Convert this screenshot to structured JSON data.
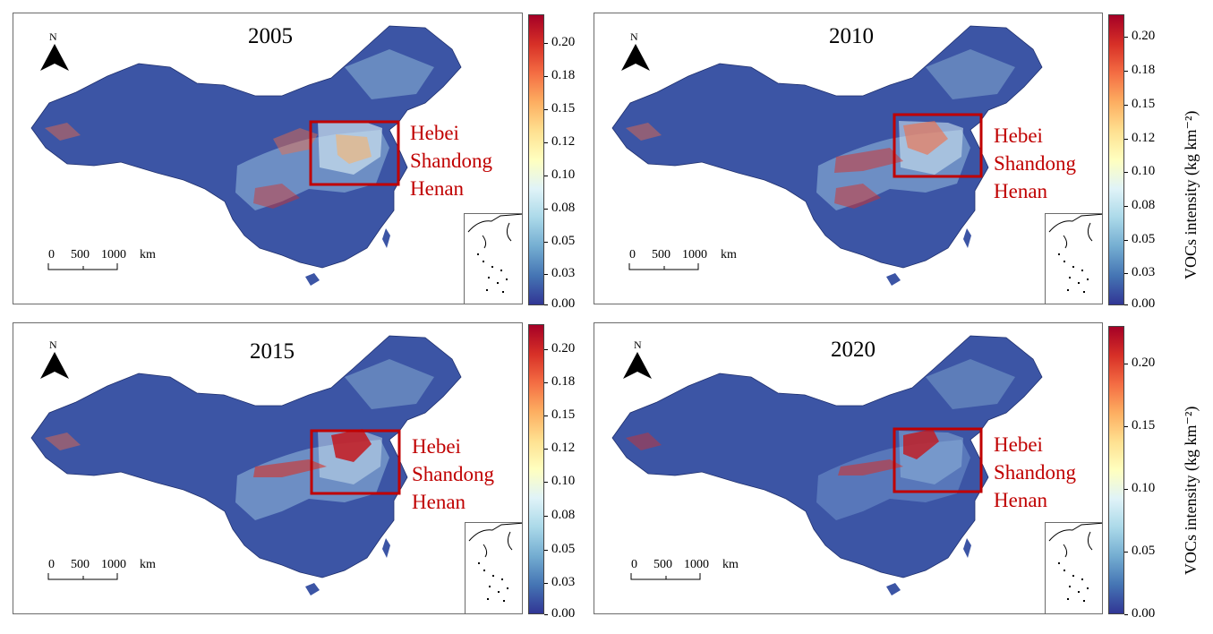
{
  "panels": [
    {
      "year": "2005",
      "regions": [
        "Hebei",
        "Shandong",
        "Henan"
      ],
      "colorbar_ticks": [
        "0.20",
        "0.18",
        "0.15",
        "0.12",
        "0.10",
        "0.08",
        "0.05",
        "0.03",
        "0.00"
      ]
    },
    {
      "year": "2010",
      "regions": [
        "Hebei",
        "Shandong",
        "Henan"
      ],
      "colorbar_ticks": [
        "0.20",
        "0.18",
        "0.15",
        "0.12",
        "0.10",
        "0.08",
        "0.05",
        "0.03",
        "0.00"
      ]
    },
    {
      "year": "2015",
      "regions": [
        "Hebei",
        "Shandong",
        "Henan"
      ],
      "colorbar_ticks": [
        "0.20",
        "0.18",
        "0.15",
        "0.12",
        "0.10",
        "0.08",
        "0.05",
        "0.03",
        "0.00"
      ]
    },
    {
      "year": "2020",
      "regions": [
        "Hebei",
        "Shandong",
        "Henan"
      ],
      "colorbar_ticks": [
        "0.20",
        "0.15",
        "0.10",
        "0.05",
        "0.00"
      ]
    }
  ],
  "north_label": "N",
  "scale": {
    "labels": [
      "0",
      "500",
      "1000"
    ],
    "unit": "km"
  },
  "colorbar_title": "VOCs intensity (kg km⁻²)",
  "colormap": [
    "#313695",
    "#4575b4",
    "#74add1",
    "#abd9e9",
    "#e0f3f8",
    "#ffffbf",
    "#fee090",
    "#fdae61",
    "#f46d43",
    "#d73027",
    "#a50026"
  ],
  "colors": {
    "highlight_box": "#c00000",
    "map_fill": "#3c55a5",
    "frame": "#6b6b6b"
  }
}
